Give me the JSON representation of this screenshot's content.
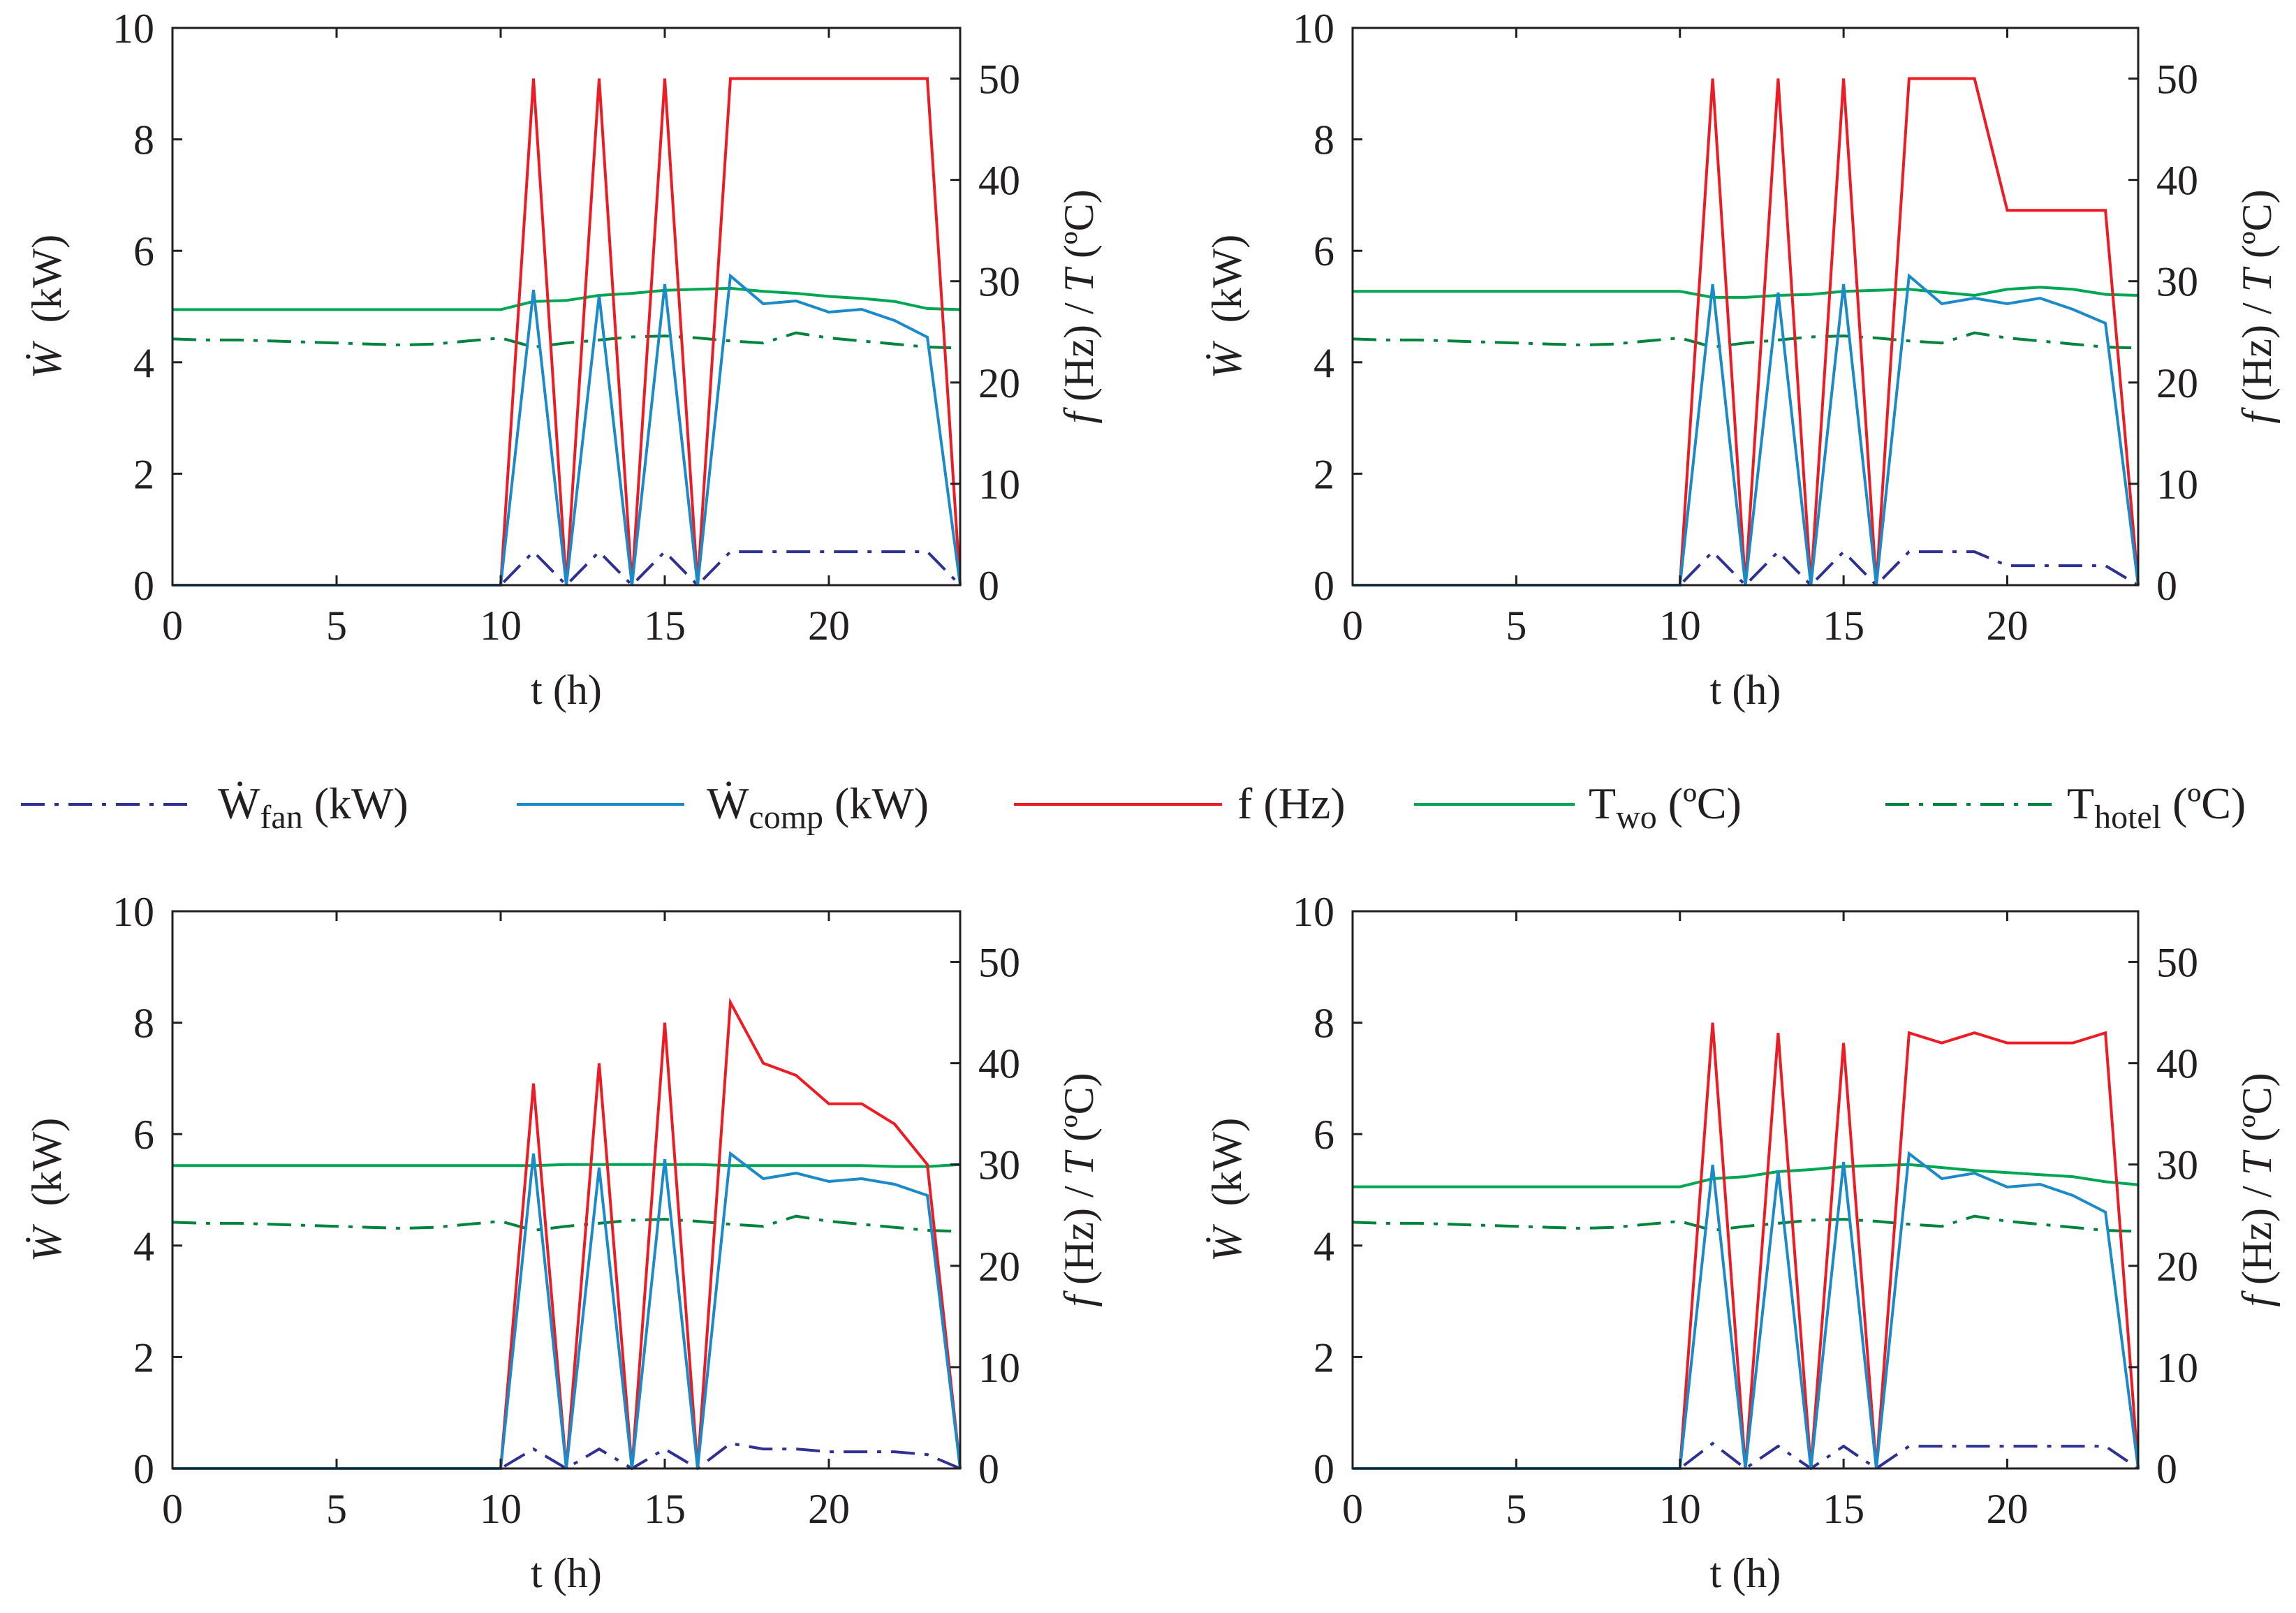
{
  "figure": {
    "colors": {
      "W_fan": "#2e3192",
      "W_comp": "#1b8ac8",
      "f": "#ed1c24",
      "T_wo": "#00a651",
      "T_hotel": "#00843d",
      "axis": "#231f20"
    },
    "legend": [
      {
        "key": "W_fan",
        "symbol": "Ẇ",
        "sub": "fan",
        "unit": "(kW)",
        "style": "dashdot"
      },
      {
        "key": "W_comp",
        "symbol": "Ẇ",
        "sub": "comp",
        "unit": "(kW)",
        "style": "solid"
      },
      {
        "key": "f",
        "symbol": "f",
        "sub": "",
        "unit": "(Hz)",
        "style": "solid"
      },
      {
        "key": "T_wo",
        "symbol": "T",
        "sub": "wo",
        "unit": "(ºC)",
        "style": "solid"
      },
      {
        "key": "T_hotel",
        "symbol": "T",
        "sub": "hotel",
        "unit": "(ºC)",
        "style": "dashdot"
      }
    ]
  },
  "chart_data": [
    {
      "type": "line",
      "position": "top-left",
      "xlabel": "t (h)",
      "ylabel_left": {
        "symbol": "Ẇ",
        "unit": "(kW)"
      },
      "ylabel_right": {
        "f": "f",
        "fu": "(Hz)",
        "sep": "/",
        "T": "T",
        "tu": "(ºC)"
      },
      "xlim": [
        0,
        24
      ],
      "ylim_left": [
        0,
        10
      ],
      "ylim_right": [
        0,
        55
      ],
      "xticks": [
        0,
        5,
        10,
        15,
        20
      ],
      "yticks_left": [
        0,
        2,
        4,
        6,
        8,
        10
      ],
      "yticks_right": [
        0,
        10,
        20,
        30,
        40,
        50
      ],
      "series": [
        {
          "name": "W_fan",
          "axis": "left",
          "x": [
            0,
            10,
            11,
            12,
            13,
            14,
            15,
            16,
            17,
            18,
            19,
            20,
            21,
            22,
            23,
            24
          ],
          "values": [
            0,
            0,
            0.6,
            0,
            0.6,
            0,
            0.6,
            0,
            0.6,
            0.6,
            0.6,
            0.6,
            0.6,
            0.6,
            0.6,
            0
          ]
        },
        {
          "name": "W_comp",
          "axis": "left",
          "x": [
            0,
            10,
            11,
            12,
            13,
            14,
            15,
            16,
            17,
            18,
            19,
            20,
            21,
            22,
            23,
            24
          ],
          "values": [
            0,
            0,
            5.3,
            0,
            5.2,
            0,
            5.4,
            0,
            5.55,
            5.05,
            5.1,
            4.9,
            4.95,
            4.75,
            4.45,
            0
          ]
        },
        {
          "name": "f",
          "axis": "right",
          "x": [
            0,
            10,
            11,
            12,
            13,
            14,
            15,
            16,
            17,
            23,
            24
          ],
          "values": [
            0,
            0,
            50,
            0,
            50,
            0,
            50,
            0,
            50,
            50,
            0
          ]
        },
        {
          "name": "T_wo",
          "axis": "right",
          "x": [
            0,
            10,
            11,
            12,
            13,
            14,
            15,
            16,
            17,
            18,
            19,
            20,
            21,
            22,
            23,
            24
          ],
          "values": [
            27.2,
            27.2,
            28,
            28.1,
            28.6,
            28.8,
            29.1,
            29.2,
            29.3,
            29,
            28.8,
            28.5,
            28.3,
            28,
            27.3,
            27.2
          ]
        },
        {
          "name": "T_hotel",
          "axis": "right",
          "x": [
            0,
            1,
            2,
            3,
            4,
            5,
            6,
            7,
            8,
            9,
            10,
            11,
            12,
            13,
            14,
            15,
            16,
            17,
            18,
            19,
            20,
            21,
            22,
            23,
            24
          ],
          "values": [
            24.3,
            24.2,
            24.2,
            24.1,
            24,
            23.9,
            23.8,
            23.7,
            23.8,
            24.1,
            24.4,
            23.5,
            23.9,
            24.2,
            24.5,
            24.6,
            24.4,
            24.1,
            23.9,
            24.9,
            24.4,
            24.1,
            23.8,
            23.5,
            23.4
          ]
        }
      ]
    },
    {
      "type": "line",
      "position": "top-right",
      "xlabel": "t (h)",
      "ylabel_left": {
        "symbol": "Ẇ",
        "unit": "(kW)"
      },
      "ylabel_right": {
        "f": "f",
        "fu": "(Hz)",
        "sep": "/",
        "T": "T",
        "tu": "(ºC)"
      },
      "xlim": [
        0,
        24
      ],
      "ylim_left": [
        0,
        10
      ],
      "ylim_right": [
        0,
        55
      ],
      "xticks": [
        0,
        5,
        10,
        15,
        20
      ],
      "yticks_left": [
        0,
        2,
        4,
        6,
        8,
        10
      ],
      "yticks_right": [
        0,
        10,
        20,
        30,
        40,
        50
      ],
      "series": [
        {
          "name": "W_fan",
          "axis": "left",
          "x": [
            0,
            10,
            11,
            12,
            13,
            14,
            15,
            16,
            17,
            18,
            19,
            20,
            21,
            22,
            23,
            24
          ],
          "values": [
            0,
            0,
            0.6,
            0,
            0.6,
            0,
            0.6,
            0,
            0.6,
            0.6,
            0.6,
            0.35,
            0.35,
            0.35,
            0.35,
            0
          ]
        },
        {
          "name": "W_comp",
          "axis": "left",
          "x": [
            0,
            10,
            11,
            12,
            13,
            14,
            15,
            16,
            17,
            18,
            19,
            20,
            21,
            22,
            23,
            24
          ],
          "values": [
            0,
            0,
            5.4,
            0,
            5.25,
            0,
            5.4,
            0,
            5.55,
            5.05,
            5.15,
            5.05,
            5.15,
            4.95,
            4.7,
            0
          ]
        },
        {
          "name": "f",
          "axis": "right",
          "x": [
            0,
            10,
            11,
            12,
            13,
            14,
            15,
            16,
            17,
            19,
            20,
            23,
            24
          ],
          "values": [
            0,
            0,
            50,
            0,
            50,
            0,
            50,
            0,
            50,
            50,
            37,
            37,
            0
          ]
        },
        {
          "name": "T_wo",
          "axis": "right",
          "x": [
            0,
            10,
            11,
            12,
            13,
            14,
            15,
            16,
            17,
            18,
            19,
            20,
            21,
            22,
            23,
            24
          ],
          "values": [
            29,
            29,
            28.4,
            28.4,
            28.6,
            28.7,
            29,
            29.1,
            29.2,
            28.9,
            28.6,
            29.2,
            29.4,
            29.2,
            28.7,
            28.6
          ]
        },
        {
          "name": "T_hotel",
          "axis": "right",
          "x": [
            0,
            1,
            2,
            3,
            4,
            5,
            6,
            7,
            8,
            9,
            10,
            11,
            12,
            13,
            14,
            15,
            16,
            17,
            18,
            19,
            20,
            21,
            22,
            23,
            24
          ],
          "values": [
            24.3,
            24.2,
            24.2,
            24.1,
            24,
            23.9,
            23.8,
            23.7,
            23.8,
            24.1,
            24.4,
            23.5,
            23.9,
            24.2,
            24.5,
            24.6,
            24.4,
            24.1,
            23.9,
            24.9,
            24.4,
            24.1,
            23.8,
            23.5,
            23.4
          ]
        }
      ]
    },
    {
      "type": "line",
      "position": "bottom-left",
      "xlabel": "t (h)",
      "ylabel_left": {
        "symbol": "Ẇ",
        "unit": "(kW)"
      },
      "ylabel_right": {
        "f": "f",
        "fu": "(Hz)",
        "sep": "/",
        "T": "T",
        "tu": "(ºC)"
      },
      "xlim": [
        0,
        24
      ],
      "ylim_left": [
        0,
        10
      ],
      "ylim_right": [
        0,
        55
      ],
      "xticks": [
        0,
        5,
        10,
        15,
        20
      ],
      "yticks_left": [
        0,
        2,
        4,
        6,
        8,
        10
      ],
      "yticks_right": [
        0,
        10,
        20,
        30,
        40,
        50
      ],
      "series": [
        {
          "name": "W_fan",
          "axis": "left",
          "x": [
            0,
            10,
            11,
            12,
            13,
            14,
            15,
            16,
            17,
            18,
            19,
            20,
            21,
            22,
            23,
            24
          ],
          "values": [
            0,
            0,
            0.35,
            0,
            0.35,
            0,
            0.35,
            0,
            0.45,
            0.35,
            0.35,
            0.3,
            0.3,
            0.3,
            0.25,
            0
          ]
        },
        {
          "name": "W_comp",
          "axis": "left",
          "x": [
            0,
            10,
            11,
            12,
            13,
            14,
            15,
            16,
            17,
            18,
            19,
            20,
            21,
            22,
            23,
            24
          ],
          "values": [
            0,
            0,
            5.65,
            0,
            5.4,
            0,
            5.55,
            0,
            5.65,
            5.2,
            5.3,
            5.15,
            5.2,
            5.1,
            4.9,
            0
          ]
        },
        {
          "name": "f",
          "axis": "right",
          "x": [
            0,
            10,
            11,
            12,
            13,
            14,
            15,
            16,
            17,
            18,
            19,
            20,
            21,
            22,
            23,
            24
          ],
          "values": [
            0,
            0,
            38,
            0,
            40,
            0,
            44,
            0,
            46,
            40,
            38.8,
            36,
            36,
            34,
            30,
            0
          ]
        },
        {
          "name": "T_wo",
          "axis": "right",
          "x": [
            0,
            10,
            11,
            12,
            13,
            14,
            15,
            16,
            17,
            18,
            19,
            20,
            21,
            22,
            23,
            24
          ],
          "values": [
            29.9,
            29.9,
            29.9,
            30,
            30,
            30,
            30,
            30,
            29.9,
            29.9,
            29.9,
            29.9,
            29.9,
            29.8,
            29.8,
            30
          ]
        },
        {
          "name": "T_hotel",
          "axis": "right",
          "x": [
            0,
            1,
            2,
            3,
            4,
            5,
            6,
            7,
            8,
            9,
            10,
            11,
            12,
            13,
            14,
            15,
            16,
            17,
            18,
            19,
            20,
            21,
            22,
            23,
            24
          ],
          "values": [
            24.3,
            24.2,
            24.2,
            24.1,
            24,
            23.9,
            23.8,
            23.7,
            23.8,
            24.1,
            24.4,
            23.5,
            23.9,
            24.2,
            24.5,
            24.6,
            24.4,
            24.1,
            23.9,
            24.9,
            24.4,
            24.1,
            23.8,
            23.5,
            23.4
          ]
        }
      ]
    },
    {
      "type": "line",
      "position": "bottom-right",
      "xlabel": "t (h)",
      "ylabel_left": {
        "symbol": "Ẇ",
        "unit": "(kW)"
      },
      "ylabel_right": {
        "f": "f",
        "fu": "(Hz)",
        "sep": "/",
        "T": "T",
        "tu": "(ºC)"
      },
      "xlim": [
        0,
        24
      ],
      "ylim_left": [
        0,
        10
      ],
      "ylim_right": [
        0,
        55
      ],
      "xticks": [
        0,
        5,
        10,
        15,
        20
      ],
      "yticks_left": [
        0,
        2,
        4,
        6,
        8,
        10
      ],
      "yticks_right": [
        0,
        10,
        20,
        30,
        40,
        50
      ],
      "series": [
        {
          "name": "W_fan",
          "axis": "left",
          "x": [
            0,
            10,
            11,
            12,
            13,
            14,
            15,
            16,
            17,
            18,
            19,
            20,
            21,
            22,
            23,
            24
          ],
          "values": [
            0,
            0,
            0.45,
            0,
            0.4,
            0,
            0.4,
            0,
            0.4,
            0.4,
            0.4,
            0.4,
            0.4,
            0.4,
            0.4,
            0
          ]
        },
        {
          "name": "W_comp",
          "axis": "left",
          "x": [
            0,
            10,
            11,
            12,
            13,
            14,
            15,
            16,
            17,
            18,
            19,
            20,
            21,
            22,
            23,
            24
          ],
          "values": [
            0,
            0,
            5.45,
            0,
            5.35,
            0,
            5.5,
            0,
            5.65,
            5.2,
            5.3,
            5.05,
            5.1,
            4.9,
            4.6,
            0
          ]
        },
        {
          "name": "f",
          "axis": "right",
          "x": [
            0,
            10,
            11,
            12,
            13,
            14,
            15,
            16,
            17,
            18,
            19,
            20,
            21,
            22,
            23,
            24
          ],
          "values": [
            0,
            0,
            44,
            0,
            43,
            0,
            42,
            0,
            43,
            42,
            43,
            42,
            42,
            42,
            43,
            0
          ]
        },
        {
          "name": "T_wo",
          "axis": "right",
          "x": [
            0,
            10,
            11,
            12,
            13,
            14,
            15,
            16,
            17,
            18,
            19,
            20,
            21,
            22,
            23,
            24
          ],
          "values": [
            27.8,
            27.8,
            28.6,
            28.8,
            29.3,
            29.5,
            29.8,
            29.9,
            30,
            29.7,
            29.4,
            29.2,
            29,
            28.8,
            28.3,
            28
          ]
        },
        {
          "name": "T_hotel",
          "axis": "right",
          "x": [
            0,
            1,
            2,
            3,
            4,
            5,
            6,
            7,
            8,
            9,
            10,
            11,
            12,
            13,
            14,
            15,
            16,
            17,
            18,
            19,
            20,
            21,
            22,
            23,
            24
          ],
          "values": [
            24.3,
            24.2,
            24.2,
            24.1,
            24,
            23.9,
            23.8,
            23.7,
            23.8,
            24.1,
            24.4,
            23.5,
            23.9,
            24.2,
            24.5,
            24.6,
            24.4,
            24.1,
            23.9,
            24.9,
            24.4,
            24.1,
            23.8,
            23.5,
            23.4
          ]
        }
      ]
    }
  ]
}
